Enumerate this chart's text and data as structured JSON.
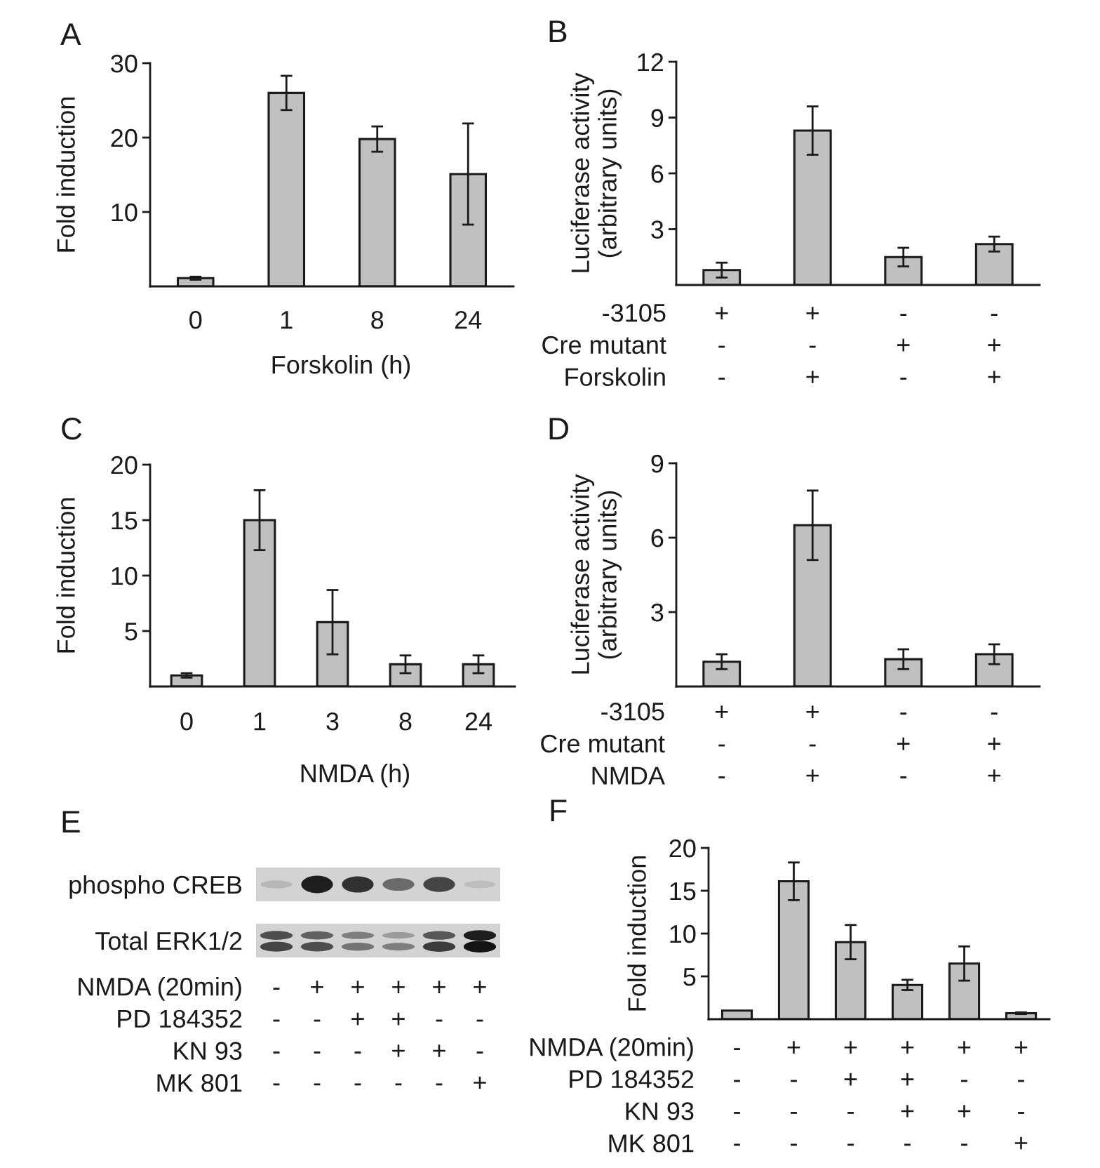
{
  "chart_data": [
    {
      "type": "bar",
      "title": "A",
      "xlabel": "Forskolin (h)",
      "ylabel": "Fold induction",
      "categories": [
        "0",
        "1",
        "8",
        "24"
      ],
      "values": [
        1.1,
        26,
        19.8,
        15.1
      ],
      "errors": [
        0.2,
        2.3,
        1.7,
        6.8
      ],
      "color": "#c0c0c0",
      "ylim": [
        0,
        30
      ],
      "yticks": [
        10,
        20,
        30
      ]
    },
    {
      "type": "bar",
      "title": "B",
      "ylabel": "Luciferase activity\n(arbitrary units)",
      "categories": [
        "+\n-\n-",
        "+\n-\n+",
        "-\n+\n-",
        "-\n+\n+"
      ],
      "annotations": [
        "-3105",
        "Cre mutant",
        "Forskolin"
      ],
      "values": [
        0.8,
        8.3,
        1.5,
        2.2
      ],
      "errors": [
        0.4,
        1.3,
        0.5,
        0.4
      ],
      "color": "#c0c0c0",
      "ylim": [
        0,
        12
      ],
      "yticks": [
        3,
        6,
        9,
        12
      ]
    },
    {
      "type": "bar",
      "title": "C",
      "xlabel": "NMDA (h)",
      "ylabel": "Fold induction",
      "categories": [
        "0",
        "1",
        "3",
        "8",
        "24"
      ],
      "values": [
        1.0,
        15,
        5.8,
        2.0,
        2.0
      ],
      "errors": [
        0.2,
        2.7,
        2.9,
        0.8,
        0.8
      ],
      "color": "#c0c0c0",
      "ylim": [
        0,
        20
      ],
      "yticks": [
        5,
        10,
        15,
        20
      ]
    },
    {
      "type": "bar",
      "title": "D",
      "ylabel": "Luciferase activity\n(arbitrary units)",
      "categories": [
        "+\n-\n-",
        "+\n-\n+",
        "-\n+\n-",
        "-\n+\n+"
      ],
      "annotations": [
        "-3105",
        "Cre mutant",
        "NMDA"
      ],
      "values": [
        1.0,
        6.5,
        1.1,
        1.3
      ],
      "errors": [
        0.3,
        1.4,
        0.4,
        0.4
      ],
      "color": "#c0c0c0",
      "ylim": [
        0,
        9
      ],
      "yticks": [
        3,
        6,
        9
      ]
    },
    {
      "type": "other",
      "title": "E",
      "categories": [
        "-\n-\n-\n-",
        "+\n-\n-\n-",
        "+\n+\n-\n-",
        "+\n+\n+\n-",
        "+\n-\n+\n-",
        "+\n-\n-\n+"
      ],
      "y_categories": [
        "phospho CREB",
        "Total ERK1/2"
      ],
      "annotations": [
        "NMDA (20min)",
        "PD 184352",
        "KN 93",
        "MK 801"
      ]
    },
    {
      "type": "bar",
      "title": "F",
      "ylabel": "Fold induction",
      "categories": [
        "-\n-\n-\n-",
        "+\n-\n-\n-",
        "+\n+\n-\n-",
        "+\n+\n+\n-",
        "+\n-\n+\n-",
        "+\n-\n-\n+"
      ],
      "annotations": [
        "NMDA (20min)",
        "PD 184352",
        "KN 93",
        "MK 801"
      ],
      "values": [
        1.0,
        16.1,
        9.0,
        4.0,
        6.5,
        0.7
      ],
      "errors": [
        null,
        2.2,
        2.0,
        0.6,
        2.0,
        0.1
      ],
      "color": "#c0c0c0",
      "ylim": [
        0,
        20
      ],
      "yticks": [
        5,
        10,
        15,
        20
      ]
    }
  ]
}
